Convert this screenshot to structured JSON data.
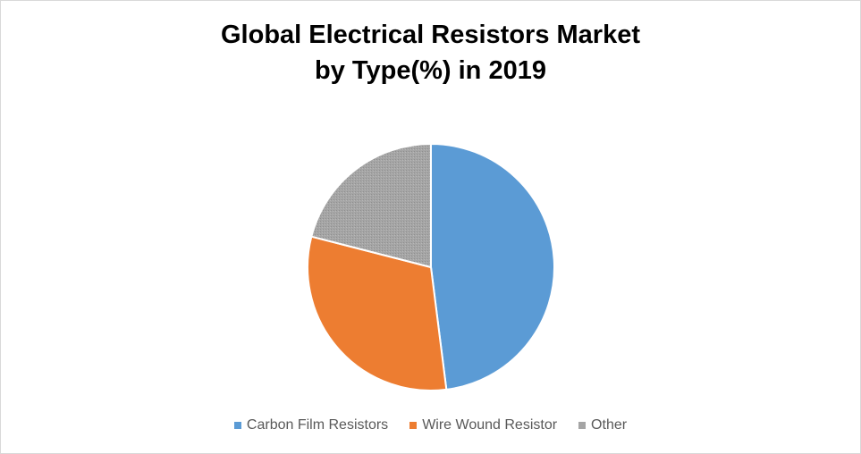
{
  "chart_data": {
    "type": "pie",
    "title_lines": [
      "Global Electrical Resistors Market",
      "by Type(%) in 2019"
    ],
    "categories": [
      "Carbon Film Resistors",
      "Wire Wound Resistor",
      "Other"
    ],
    "values": [
      48,
      31,
      21
    ],
    "colors": [
      "#5b9bd5",
      "#ed7d31",
      "#a5a5a5"
    ],
    "legend_position": "bottom"
  }
}
